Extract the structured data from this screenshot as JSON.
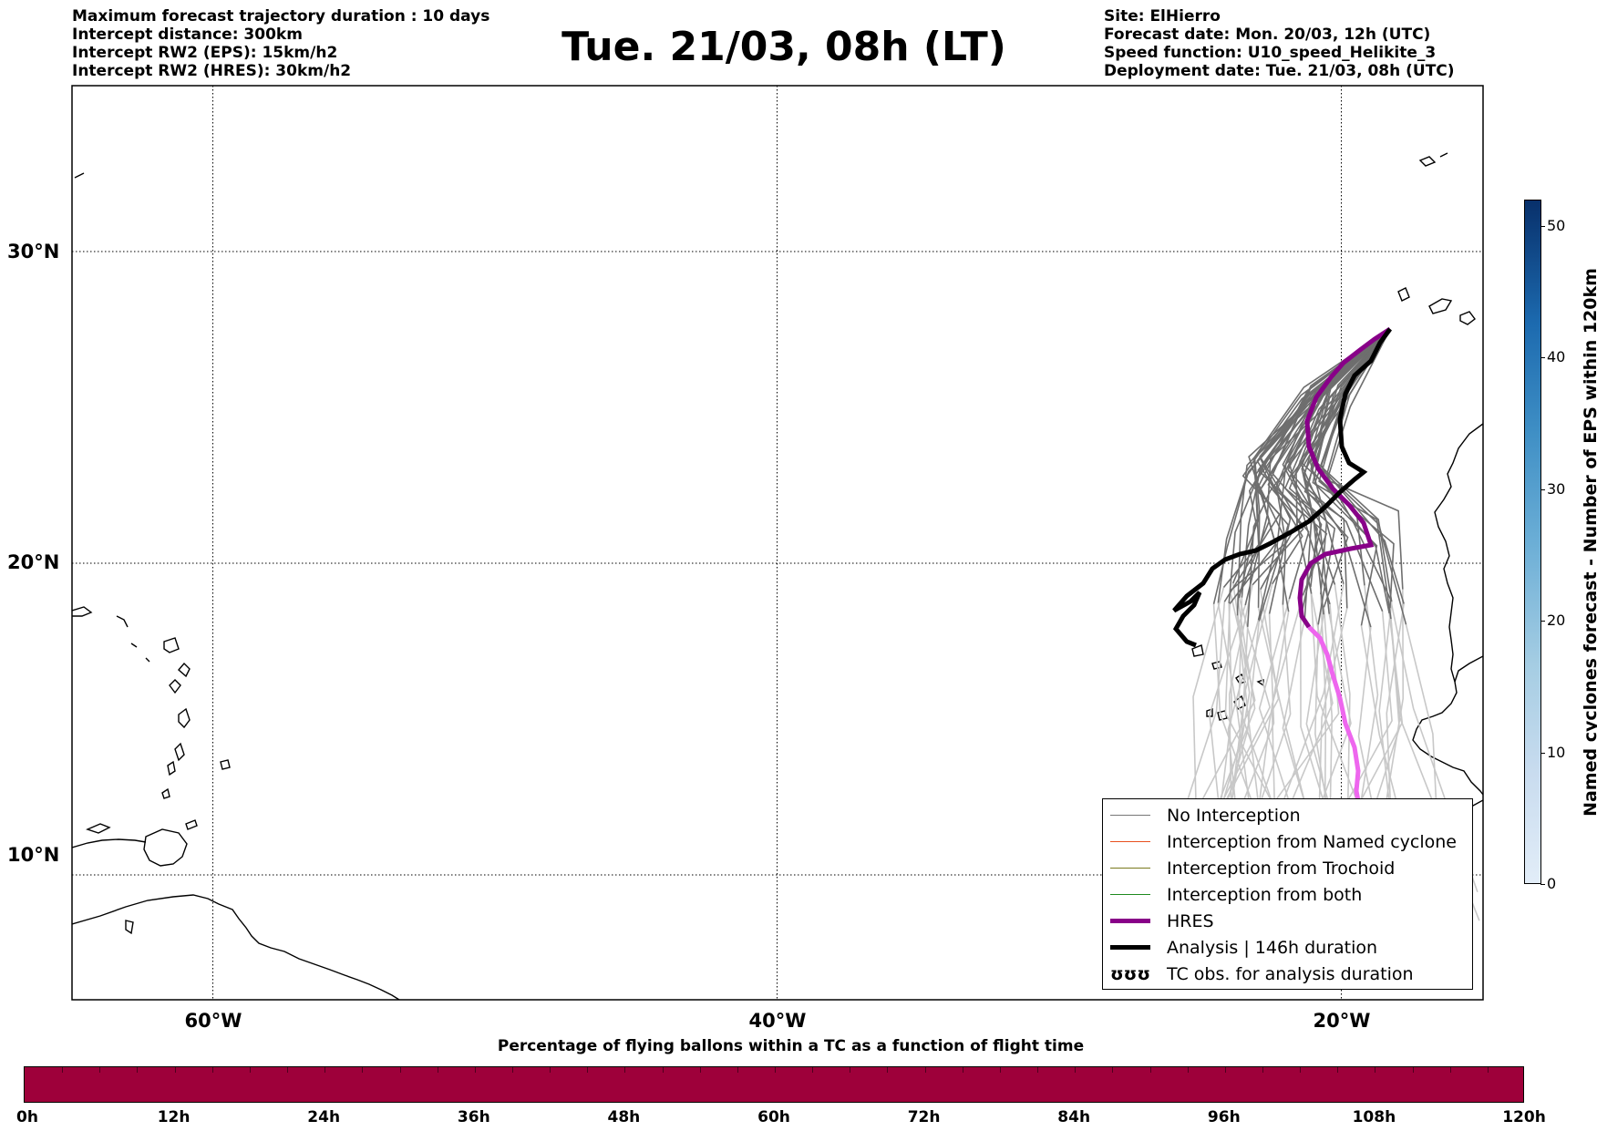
{
  "header": {
    "left_lines": [
      "Maximum forecast trajectory duration : 10 days",
      "Intercept distance: 300km",
      "Intercept RW2 (EPS):  15km/h2",
      "Intercept RW2 (HRES): 30km/h2"
    ],
    "title": "Tue. 21/03, 08h (LT)",
    "right_lines": [
      "Site: ElHierro",
      "Forecast date: Mon. 20/03, 12h (UTC)",
      "Speed function: U10_speed_Helikite_3",
      "Deployment date: Tue. 21/03, 08h (UTC)"
    ]
  },
  "map": {
    "lat_labels": [
      "30°N",
      "20°N",
      "10°N"
    ],
    "lon_labels": [
      "60°W",
      "40°W",
      "20°W"
    ],
    "latitudes": [
      30,
      20,
      10
    ],
    "longitudes": [
      -60,
      -40,
      -20
    ]
  },
  "legend": {
    "items": [
      {
        "label": "No Interception",
        "color": "#777777",
        "style": "thin"
      },
      {
        "label": "Interception from Named cyclone",
        "color": "#e8501e",
        "style": "thin"
      },
      {
        "label": "Interception from Trochoid",
        "color": "#7a7a1e",
        "style": "thin"
      },
      {
        "label": "Interception from both",
        "color": "#1e8a1e",
        "style": "thin"
      },
      {
        "label": "HRES",
        "color": "#880088",
        "style": "thick"
      },
      {
        "label": "Analysis | 146h duration",
        "color": "#000000",
        "style": "thick"
      },
      {
        "label": "TC obs. for analysis duration",
        "color": "#000000",
        "style": "symbol",
        "symbol": "ʊʊʊ"
      }
    ]
  },
  "colorbar": {
    "label": "Named cyclones forecast - Number of EPS within 120km",
    "ticks": [
      "0",
      "10",
      "20",
      "30",
      "40",
      "50"
    ],
    "max": 52
  },
  "timebar": {
    "caption": "Percentage of flying ballons within a TC as a function of flight time",
    "ticks": [
      "0h",
      "12h",
      "24h",
      "36h",
      "48h",
      "60h",
      "72h",
      "84h",
      "96h",
      "108h",
      "120h"
    ],
    "color": "#9e003a"
  },
  "colors": {
    "hres": "#880088",
    "hres_late": "#ee66ee",
    "analysis": "#000000",
    "eps": "#6e6e6e",
    "eps_late": "#c8c8c8"
  }
}
